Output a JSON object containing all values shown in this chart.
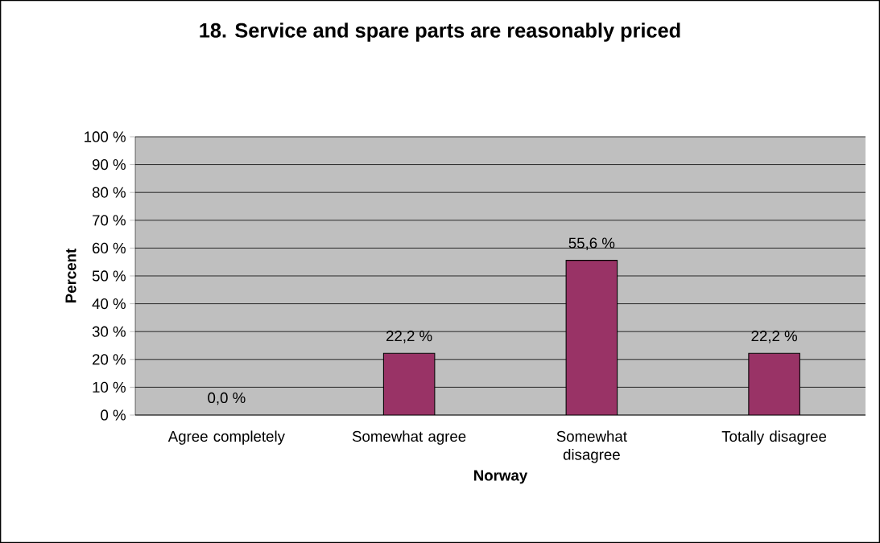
{
  "chart_data": {
    "type": "bar",
    "title": "18. Service and spare parts are reasonably priced",
    "xlabel": "Norway",
    "ylabel": "Percent",
    "categories": [
      "Agree completely",
      "Somewhat agree",
      "Somewhat disagree",
      "Totally disagree"
    ],
    "values": [
      0.0,
      22.2,
      55.6,
      22.2
    ],
    "value_labels": [
      "0,0 %",
      "22,2 %",
      "55,6 %",
      "22,2 %"
    ],
    "color": "#993366",
    "ylim": [
      0,
      100
    ],
    "yticks": [
      {
        "value": 0,
        "label": "0 %"
      },
      {
        "value": 10,
        "label": "10 %"
      },
      {
        "value": 20,
        "label": "20 %"
      },
      {
        "value": 30,
        "label": "30 %"
      },
      {
        "value": 40,
        "label": "40 %"
      },
      {
        "value": 50,
        "label": "50 %"
      },
      {
        "value": 60,
        "label": "60 %"
      },
      {
        "value": 70,
        "label": "70 %"
      },
      {
        "value": 80,
        "label": "80 %"
      },
      {
        "value": 90,
        "label": "90 %"
      },
      {
        "value": 100,
        "label": "100 %"
      }
    ],
    "grid": "y"
  }
}
